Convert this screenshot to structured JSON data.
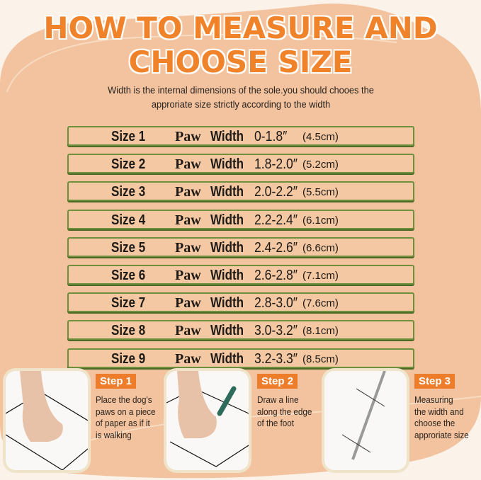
{
  "title_line1": "HOW TO MEASURE AND",
  "title_line2": "CHOOSE SIZE",
  "subtitle_line1": "Width is the internal dimensions of the sole.you should chooes the",
  "subtitle_line2": "approriate size strictly according to the width",
  "sizes": [
    {
      "size": "Size 1",
      "paw": "Paw",
      "width": "Width",
      "inches": "0-1.8″",
      "cm": "(4.5cm)"
    },
    {
      "size": "Size 2",
      "paw": "Paw",
      "width": "Width",
      "inches": "1.8-2.0″",
      "cm": "(5.2cm)"
    },
    {
      "size": "Size 3",
      "paw": "Paw",
      "width": "Width",
      "inches": "2.0-2.2″",
      "cm": "(5.5cm)"
    },
    {
      "size": "Size 4",
      "paw": "Paw",
      "width": "Width",
      "inches": "2.2-2.4″",
      "cm": "(6.1cm)"
    },
    {
      "size": "Size 5",
      "paw": "Paw",
      "width": "Width",
      "inches": "2.4-2.6″",
      "cm": "(6.6cm)"
    },
    {
      "size": "Size 6",
      "paw": "Paw",
      "width": "Width",
      "inches": "2.6-2.8″",
      "cm": "(7.1cm)"
    },
    {
      "size": "Size 7",
      "paw": "Paw",
      "width": "Width",
      "inches": "2.8-3.0″",
      "cm": "(7.6cm)"
    },
    {
      "size": "Size 8",
      "paw": "Paw",
      "width": "Width",
      "inches": "3.0-3.2″",
      "cm": "(8.1cm)"
    },
    {
      "size": "Size 9",
      "paw": "Paw",
      "width": "Width",
      "inches": "3.2-3.3″",
      "cm": "(8.5cm)"
    }
  ],
  "steps": [
    {
      "label": "Step 1",
      "lines": [
        "Place the dog's",
        "paws on a piece",
        "of paper as if it",
        "is walking"
      ],
      "icon": "paw-on-paper-icon"
    },
    {
      "label": "Step 2",
      "lines": [
        "Draw a line",
        "along the edge",
        "of the foot"
      ],
      "icon": "pencil-trace-icon"
    },
    {
      "label": "Step 3",
      "lines": [
        "Measuring",
        "the width and",
        "choose the",
        "approriate size"
      ],
      "icon": "ruler-measure-icon"
    }
  ],
  "colors": {
    "accent": "#f0822a",
    "background": "#f2c39e",
    "row_border": "#6e8f3c",
    "step_badge": "#ee7d2b"
  }
}
